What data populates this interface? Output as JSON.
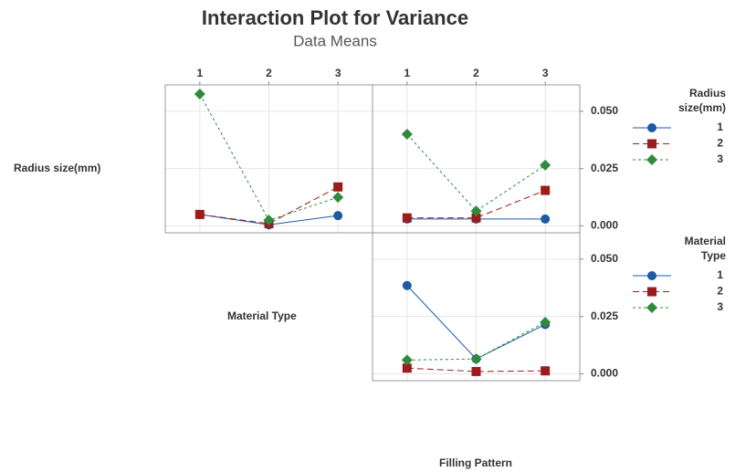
{
  "title": "Interaction Plot for Variance",
  "subtitle": "Data Means",
  "row_labels": [
    "Radius size(mm)",
    "Material Type"
  ],
  "column_label": "Filling Pattern",
  "chart_data": [
    {
      "type": "line",
      "x": [
        1,
        2,
        3
      ],
      "xlim": [
        0.5,
        3.5
      ],
      "xticks": [
        1,
        2,
        3
      ],
      "ylim": [
        -0.003,
        0.0615
      ],
      "yticks": [
        {
          "value": 0,
          "label": "0.000"
        },
        {
          "value": 0.025,
          "label": "0.025"
        },
        {
          "value": 0.05,
          "label": "0.050"
        }
      ],
      "grid": true,
      "series": [
        {
          "name": "1",
          "color": "#1f5aa6",
          "values": [
            0.005,
            0.0005,
            0.0045
          ]
        },
        {
          "name": "2",
          "color": "#9b1c1c",
          "values": [
            0.005,
            0.001,
            0.017
          ]
        },
        {
          "name": "3",
          "color": "#2e8b3a",
          "values": [
            0.0575,
            0.0025,
            0.0125
          ]
        }
      ]
    },
    {
      "type": "line",
      "x": [
        1,
        2,
        3
      ],
      "xlim": [
        0.5,
        3.5
      ],
      "xticks": [
        1,
        2,
        3
      ],
      "ylim": [
        -0.003,
        0.0615
      ],
      "yticks": [
        {
          "value": 0,
          "label": "0.000"
        },
        {
          "value": 0.025,
          "label": "0.025"
        },
        {
          "value": 0.05,
          "label": "0.050"
        }
      ],
      "grid": true,
      "legend_title": "Radius size(mm)",
      "series": [
        {
          "name": "1",
          "color": "#1f5aa6",
          "values": [
            0.003,
            0.003,
            0.003
          ]
        },
        {
          "name": "2",
          "color": "#9b1c1c",
          "values": [
            0.0035,
            0.0035,
            0.0155
          ]
        },
        {
          "name": "3",
          "color": "#2e8b3a",
          "values": [
            0.04,
            0.0065,
            0.0265
          ]
        }
      ]
    },
    {
      "type": "line",
      "x": [
        1,
        2,
        3
      ],
      "xlim": [
        0.5,
        3.5
      ],
      "xticks": [
        1,
        2,
        3
      ],
      "ylim": [
        -0.003,
        0.0615
      ],
      "yticks": [
        {
          "value": 0,
          "label": "0.000"
        },
        {
          "value": 0.025,
          "label": "0.025"
        },
        {
          "value": 0.05,
          "label": "0.050"
        }
      ],
      "grid": true,
      "legend_title": "Material Type",
      "series": [
        {
          "name": "1",
          "color": "#1f5aa6",
          "values": [
            0.0385,
            0.0065,
            0.0215
          ]
        },
        {
          "name": "2",
          "color": "#9b1c1c",
          "values": [
            0.0025,
            0.001,
            0.0013
          ]
        },
        {
          "name": "3",
          "color": "#2e8b3a",
          "values": [
            0.006,
            0.0065,
            0.0225
          ]
        }
      ]
    }
  ]
}
